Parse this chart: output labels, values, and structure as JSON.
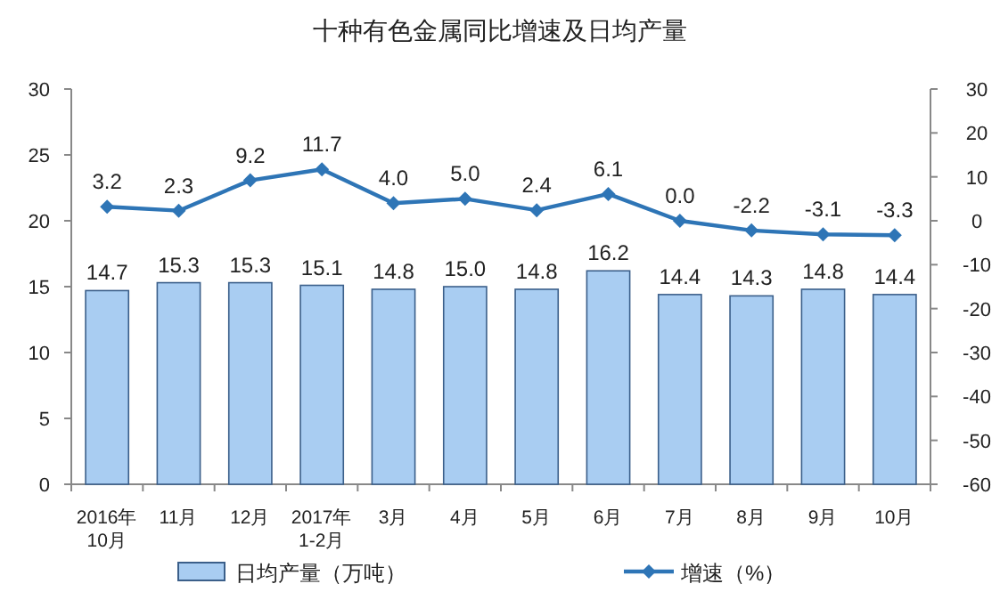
{
  "chart_data": {
    "type": "bar",
    "title": "十种有色金属同比增速及日均产量",
    "categories": [
      "2016年\n10月",
      "11月",
      "12月",
      "2017年\n1-2月",
      "3月",
      "4月",
      "5月",
      "6月",
      "7月",
      "8月",
      "9月",
      "10月"
    ],
    "series": [
      {
        "name": "日均产量（万吨）",
        "color": "#a9cdf2",
        "values": [
          14.7,
          15.3,
          15.3,
          15.1,
          14.8,
          15.0,
          14.8,
          16.2,
          14.4,
          14.3,
          14.8,
          14.4
        ],
        "value_labels": [
          "14.7",
          "15.3",
          "15.3",
          "15.1",
          "14.8",
          "15.0",
          "14.8",
          "16.2",
          "14.4",
          "14.3",
          "14.8",
          "14.4"
        ]
      },
      {
        "name": "增速（%）",
        "type": "line",
        "axis": "y2",
        "color": "#2e75b6",
        "marker": "diamond",
        "values": [
          3.2,
          2.3,
          9.2,
          11.7,
          4.0,
          5.0,
          2.4,
          6.1,
          0.0,
          -2.2,
          -3.1,
          -3.3
        ],
        "value_labels": [
          "3.2",
          "2.3",
          "9.2",
          "11.7",
          "4.0",
          "5.0",
          "2.4",
          "6.1",
          "0.0",
          "-2.2",
          "-3.1",
          "-3.3"
        ]
      }
    ],
    "ylim": [
      0,
      30
    ],
    "yticks": [
      0,
      5,
      10,
      15,
      20,
      25,
      30
    ],
    "y2lim": [
      -60,
      30
    ],
    "y2ticks": [
      -60,
      -50,
      -40,
      -30,
      -20,
      -10,
      0,
      10,
      20,
      30
    ],
    "grid": false,
    "legend": "bottom"
  }
}
